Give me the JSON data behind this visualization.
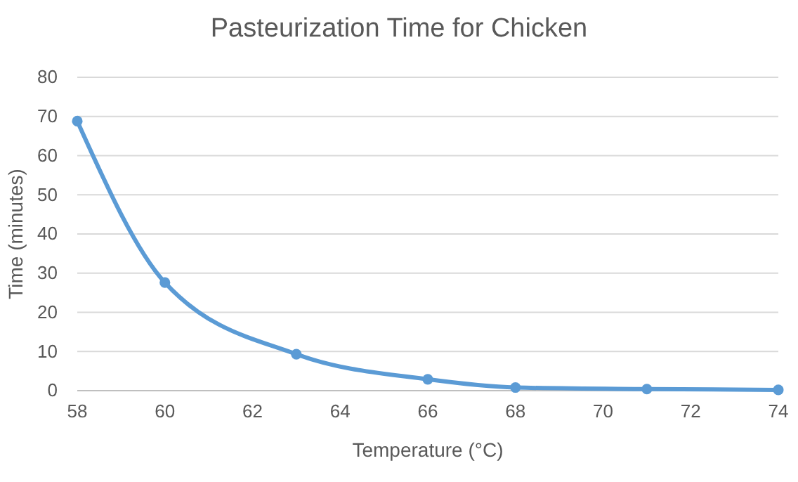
{
  "chart_data": {
    "type": "line",
    "title": "Pasteurization Time for Chicken",
    "xlabel": "Temperature (°C)",
    "ylabel": "Time (minutes)",
    "x": [
      58,
      60,
      63,
      66,
      68,
      71,
      74
    ],
    "series": [
      {
        "color": "#5b9bd5",
        "values": [
          68.8,
          27.6,
          9.3,
          2.9,
          0.8,
          0.4,
          0.2
        ]
      }
    ],
    "xlim": [
      58,
      74
    ],
    "xticks": [
      58,
      60,
      62,
      64,
      66,
      68,
      70,
      72,
      74
    ],
    "ylim": [
      0,
      80
    ],
    "yticks": [
      0,
      10,
      20,
      30,
      40,
      50,
      60,
      70,
      80
    ],
    "grid": "y",
    "marker": "circle",
    "line_style": "solid"
  }
}
